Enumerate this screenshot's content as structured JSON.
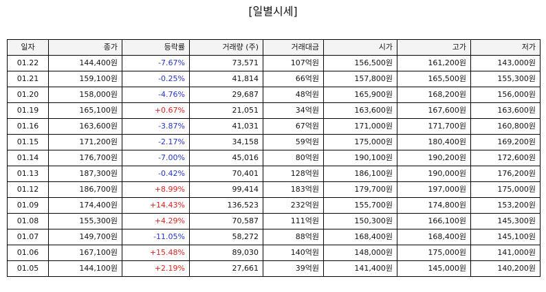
{
  "title": "[일별시세]",
  "colors": {
    "negative": "#2233cc",
    "positive": "#e02020"
  },
  "columns": [
    "일자",
    "종가",
    "등락률",
    "거래량 (주)",
    "거래대금",
    "시가",
    "고가",
    "저가"
  ],
  "rows": [
    {
      "date": "01.22",
      "close": "144,400원",
      "change": "-7.67%",
      "volume": "73,571",
      "amount": "107억원",
      "open": "156,500원",
      "high": "161,200원",
      "low": "143,000원"
    },
    {
      "date": "01.21",
      "close": "159,100원",
      "change": "-0.25%",
      "volume": "41,814",
      "amount": "66억원",
      "open": "157,800원",
      "high": "165,500원",
      "low": "155,300원"
    },
    {
      "date": "01.20",
      "close": "158,000원",
      "change": "-4.76%",
      "volume": "29,687",
      "amount": "48억원",
      "open": "165,900원",
      "high": "168,200원",
      "low": "156,000원"
    },
    {
      "date": "01.19",
      "close": "165,100원",
      "change": "+0.67%",
      "volume": "21,051",
      "amount": "34억원",
      "open": "163,600원",
      "high": "167,600원",
      "low": "163,600원"
    },
    {
      "date": "01.16",
      "close": "163,600원",
      "change": "-3.87%",
      "volume": "41,031",
      "amount": "67억원",
      "open": "171,000원",
      "high": "171,700원",
      "low": "160,800원"
    },
    {
      "date": "01.15",
      "close": "171,200원",
      "change": "-2.17%",
      "volume": "34,158",
      "amount": "59억원",
      "open": "175,000원",
      "high": "180,400원",
      "low": "169,200원"
    },
    {
      "date": "01.14",
      "close": "176,700원",
      "change": "-7.00%",
      "volume": "45,016",
      "amount": "80억원",
      "open": "190,100원",
      "high": "190,200원",
      "low": "172,600원"
    },
    {
      "date": "01.13",
      "close": "187,300원",
      "change": "-0.42%",
      "volume": "70,401",
      "amount": "128억원",
      "open": "186,100원",
      "high": "190,000원",
      "low": "176,200원"
    },
    {
      "date": "01.12",
      "close": "186,700원",
      "change": "+8.99%",
      "volume": "99,414",
      "amount": "183억원",
      "open": "179,700원",
      "high": "197,000원",
      "low": "175,000원"
    },
    {
      "date": "01.09",
      "close": "174,400원",
      "change": "+14.43%",
      "volume": "136,523",
      "amount": "232억원",
      "open": "155,700원",
      "high": "174,800원",
      "low": "153,200원"
    },
    {
      "date": "01.08",
      "close": "155,300원",
      "change": "+4.29%",
      "volume": "70,587",
      "amount": "111억원",
      "open": "150,300원",
      "high": "166,100원",
      "low": "145,300원"
    },
    {
      "date": "01.07",
      "close": "149,700원",
      "change": "-11.05%",
      "volume": "58,272",
      "amount": "88억원",
      "open": "168,400원",
      "high": "168,400원",
      "low": "145,100원"
    },
    {
      "date": "01.06",
      "close": "167,100원",
      "change": "+15.48%",
      "volume": "89,030",
      "amount": "140억원",
      "open": "148,000원",
      "high": "175,000원",
      "low": "141,000원"
    },
    {
      "date": "01.05",
      "close": "144,100원",
      "change": "+2.19%",
      "volume": "27,661",
      "amount": "39억원",
      "open": "141,400원",
      "high": "145,000원",
      "low": "140,200원"
    }
  ]
}
